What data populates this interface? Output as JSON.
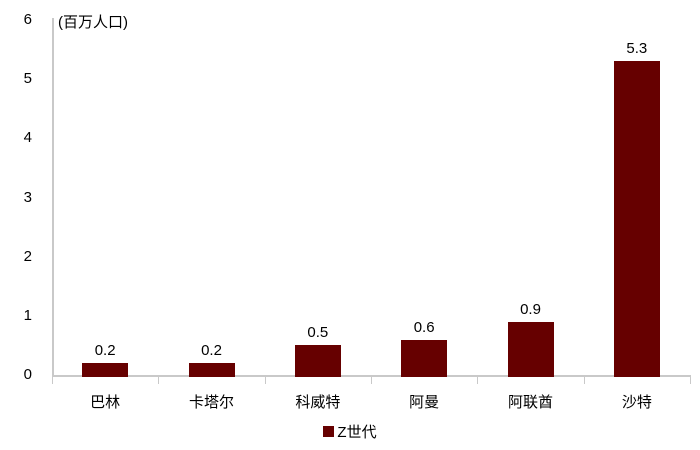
{
  "chart_data": {
    "type": "bar",
    "title": "",
    "unit_label": "(百万人口)",
    "categories": [
      "巴林",
      "卡塔尔",
      "科威特",
      "阿曼",
      "阿联酋",
      "沙特"
    ],
    "series": [
      {
        "name": "Z世代",
        "values": [
          0.2,
          0.2,
          0.5,
          0.6,
          0.9,
          5.3
        ]
      }
    ],
    "value_labels": [
      "0.2",
      "0.2",
      "0.5",
      "0.6",
      "0.9",
      "5.3"
    ],
    "yticks": [
      0,
      1,
      2,
      3,
      4,
      5,
      6
    ],
    "ylim": [
      0,
      6
    ],
    "xlabel": "",
    "ylabel": "",
    "grid": false,
    "legend_position": "bottom-center",
    "legend_entries": [
      "Z世代"
    ],
    "colors": {
      "bar": "#660000",
      "axis": "#c9c9c9",
      "text": "#000000",
      "background": "#ffffff"
    }
  }
}
